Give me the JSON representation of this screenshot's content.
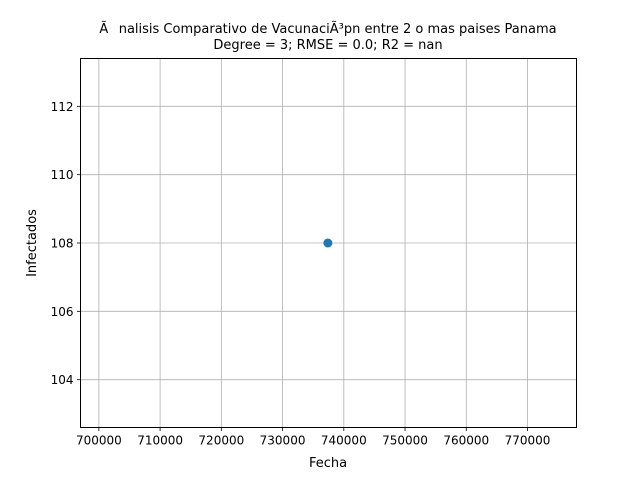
{
  "chart_data": {
    "type": "scatter",
    "title": "Ãnalisis Comparativo de VacunaciÃ³pn entre 2 o mas paises Panama",
    "subtitle": "Degree = 3; RMSE = 0.0; R2 = nan",
    "xlabel": "Fecha",
    "ylabel": "Infectados",
    "xlim": [
      697000,
      778000
    ],
    "ylim": [
      102.6,
      113.4
    ],
    "xticks": [
      700000,
      710000,
      720000,
      730000,
      740000,
      750000,
      760000,
      770000
    ],
    "yticks": [
      104,
      106,
      108,
      110,
      112
    ],
    "grid": true,
    "points": [
      {
        "x": 737400,
        "y": 108
      }
    ],
    "colors": {
      "point": "#1f77b4",
      "grid": "#b0b0b0"
    }
  }
}
